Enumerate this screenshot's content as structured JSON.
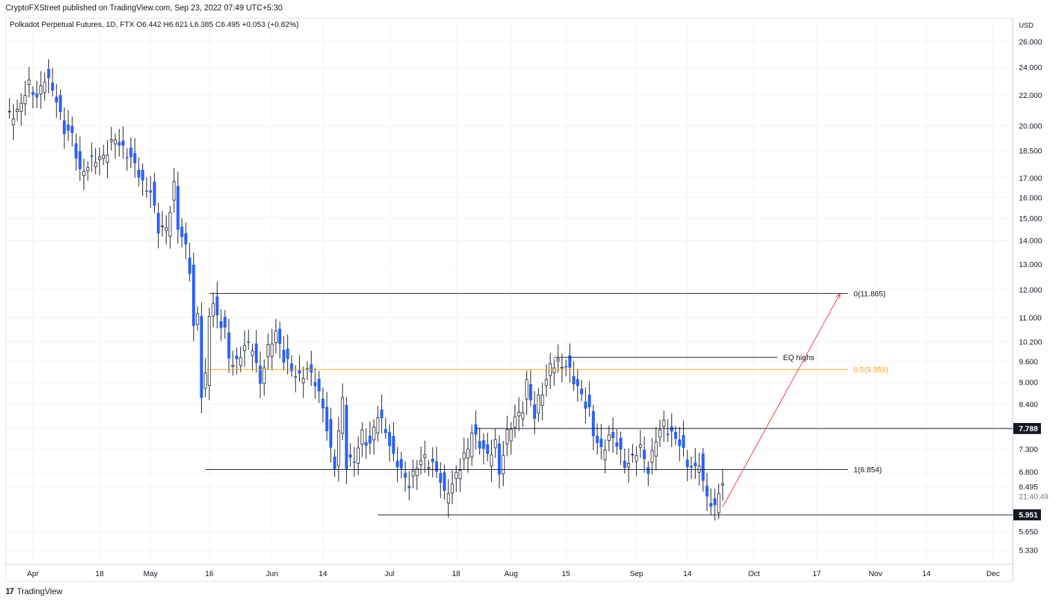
{
  "header": {
    "publisher_line": "CryptoFXStreet published on TradingView.com, Sep 23, 2022 07:49 UTC+5:30"
  },
  "symbol_line": "Polkadot Perpetual Futures, 1D, FTX  O6.442  H6.621  L6.385  C6.495  +0.053 (+0.82%)",
  "footer": {
    "logo_glyph": "17",
    "brand": "TradingView"
  },
  "colors": {
    "up": "#ffffff",
    "down": "#2962ff",
    "wick": "#131722",
    "fib_mid": "#f7a21b",
    "arrow": "#f23645",
    "label_bg": "#131722",
    "grid": "#f0f3fa"
  },
  "chart_data": {
    "type": "candlestick",
    "title": "Polkadot Perpetual Futures, 1D, FTX",
    "currency": "USD",
    "scale": "log",
    "ylim": [
      5.1,
      28.0
    ],
    "y_ticks": [
      "26.000",
      "24.000",
      "22.000",
      "20.000",
      "18.500",
      "17.000",
      "16.000",
      "15.000",
      "14.000",
      "13.000",
      "12.000",
      "11.000",
      "10.200",
      "9.600",
      "9.000",
      "8.400",
      "7.800",
      "7.300",
      "6.800",
      "6.495",
      "5.650",
      "5.330"
    ],
    "x_labels": [
      {
        "label": "Apr",
        "index": 7
      },
      {
        "label": "18",
        "index": 24
      },
      {
        "label": "May",
        "index": 37
      },
      {
        "label": "16",
        "index": 52
      },
      {
        "label": "Jun",
        "index": 68
      },
      {
        "label": "14",
        "index": 81
      },
      {
        "label": "Jul",
        "index": 98
      },
      {
        "label": "18",
        "index": 115
      },
      {
        "label": "Aug",
        "index": 129
      },
      {
        "label": "15",
        "index": 143
      },
      {
        "label": "Sep",
        "index": 161
      },
      {
        "label": "14",
        "index": 174
      },
      {
        "label": "Oct",
        "index": 191
      },
      {
        "label": "17",
        "index": 207
      },
      {
        "label": "Nov",
        "index": 222
      },
      {
        "label": "14",
        "index": 235
      },
      {
        "label": "Dec",
        "index": 252
      }
    ],
    "visible_index_range": [
      0,
      257
    ],
    "candles_anchors": [
      {
        "i": 0,
        "c": 20.5
      },
      {
        "i": 3,
        "c": 21.0
      },
      {
        "i": 6,
        "c": 22.6
      },
      {
        "i": 8,
        "c": 22.0
      },
      {
        "i": 10,
        "c": 23.2
      },
      {
        "i": 11,
        "c": 22.8
      },
      {
        "i": 13,
        "c": 21.8
      },
      {
        "i": 15,
        "c": 19.8
      },
      {
        "i": 17,
        "c": 19.3
      },
      {
        "i": 19,
        "c": 17.4
      },
      {
        "i": 22,
        "c": 17.8
      },
      {
        "i": 25,
        "c": 18.3
      },
      {
        "i": 28,
        "c": 19.1
      },
      {
        "i": 31,
        "c": 18.5
      },
      {
        "i": 33,
        "c": 17.6
      },
      {
        "i": 35,
        "c": 16.7
      },
      {
        "i": 37,
        "c": 16.4
      },
      {
        "i": 39,
        "c": 14.4
      },
      {
        "i": 41,
        "c": 14.6
      },
      {
        "i": 43,
        "c": 16.6
      },
      {
        "i": 44,
        "c": 14.5
      },
      {
        "i": 46,
        "c": 13.7
      },
      {
        "i": 47,
        "c": 12.9
      },
      {
        "i": 48,
        "c": 10.7
      },
      {
        "i": 49,
        "c": 11.1
      },
      {
        "i": 50,
        "c": 8.6
      },
      {
        "i": 51,
        "c": 9.1
      },
      {
        "i": 52,
        "c": 11.2
      },
      {
        "i": 53,
        "c": 11.6
      },
      {
        "i": 54,
        "c": 11.0
      },
      {
        "i": 56,
        "c": 10.5
      },
      {
        "i": 57,
        "c": 9.7
      },
      {
        "i": 59,
        "c": 9.6
      },
      {
        "i": 61,
        "c": 10.0
      },
      {
        "i": 63,
        "c": 10.1
      },
      {
        "i": 65,
        "c": 9.0
      },
      {
        "i": 67,
        "c": 9.9
      },
      {
        "i": 69,
        "c": 10.6
      },
      {
        "i": 71,
        "c": 9.7
      },
      {
        "i": 73,
        "c": 9.3
      },
      {
        "i": 75,
        "c": 9.2
      },
      {
        "i": 77,
        "c": 9.3
      },
      {
        "i": 79,
        "c": 9.0
      },
      {
        "i": 81,
        "c": 8.4
      },
      {
        "i": 83,
        "c": 7.2
      },
      {
        "i": 84,
        "c": 6.9
      },
      {
        "i": 86,
        "c": 8.6
      },
      {
        "i": 87,
        "c": 7.0
      },
      {
        "i": 89,
        "c": 7.0
      },
      {
        "i": 91,
        "c": 7.7
      },
      {
        "i": 93,
        "c": 7.4
      },
      {
        "i": 95,
        "c": 8.1
      },
      {
        "i": 97,
        "c": 7.8
      },
      {
        "i": 99,
        "c": 7.1
      },
      {
        "i": 101,
        "c": 6.8
      },
      {
        "i": 103,
        "c": 6.6
      },
      {
        "i": 105,
        "c": 6.9
      },
      {
        "i": 107,
        "c": 7.1
      },
      {
        "i": 109,
        "c": 7.0
      },
      {
        "i": 111,
        "c": 6.6
      },
      {
        "i": 112,
        "c": 6.3
      },
      {
        "i": 114,
        "c": 6.6
      },
      {
        "i": 116,
        "c": 6.9
      },
      {
        "i": 118,
        "c": 7.3
      },
      {
        "i": 119,
        "c": 7.8
      },
      {
        "i": 121,
        "c": 7.4
      },
      {
        "i": 123,
        "c": 7.1
      },
      {
        "i": 125,
        "c": 7.5
      },
      {
        "i": 126,
        "c": 6.8
      },
      {
        "i": 128,
        "c": 7.6
      },
      {
        "i": 130,
        "c": 8.1
      },
      {
        "i": 132,
        "c": 8.3
      },
      {
        "i": 133,
        "c": 8.9
      },
      {
        "i": 135,
        "c": 8.1
      },
      {
        "i": 136,
        "c": 8.6
      },
      {
        "i": 138,
        "c": 9.0
      },
      {
        "i": 139,
        "c": 9.4
      },
      {
        "i": 141,
        "c": 9.6
      },
      {
        "i": 143,
        "c": 9.5
      },
      {
        "i": 145,
        "c": 9.0
      },
      {
        "i": 147,
        "c": 8.7
      },
      {
        "i": 149,
        "c": 8.2
      },
      {
        "i": 150,
        "c": 7.6
      },
      {
        "i": 152,
        "c": 7.3
      },
      {
        "i": 154,
        "c": 7.6
      },
      {
        "i": 156,
        "c": 7.4
      },
      {
        "i": 158,
        "c": 7.0
      },
      {
        "i": 160,
        "c": 7.1
      },
      {
        "i": 162,
        "c": 7.3
      },
      {
        "i": 164,
        "c": 6.9
      },
      {
        "i": 166,
        "c": 7.5
      },
      {
        "i": 168,
        "c": 7.9
      },
      {
        "i": 170,
        "c": 7.7
      },
      {
        "i": 172,
        "c": 7.4
      },
      {
        "i": 174,
        "c": 7.0
      },
      {
        "i": 176,
        "c": 6.9
      },
      {
        "i": 177,
        "c": 7.0
      },
      {
        "i": 178,
        "c": 6.5
      },
      {
        "i": 179,
        "c": 6.3
      },
      {
        "i": 180,
        "c": 6.2
      },
      {
        "i": 181,
        "c": 6.1
      },
      {
        "i": 182,
        "c": 6.44
      },
      {
        "i": 183,
        "c": 6.495
      }
    ],
    "horizontal_lines": [
      {
        "label": "0(11.865)",
        "price": 11.865,
        "from_index": 52,
        "to_index": 215,
        "color": "#131722"
      },
      {
        "label": "EQ highs",
        "price": 9.72,
        "from_index": 140,
        "to_index": 197,
        "color": "#131722"
      },
      {
        "label": "0.5(9.359)",
        "price": 9.359,
        "from_index": 51,
        "to_index": 215,
        "color": "#f7a21b"
      },
      {
        "label": "",
        "price": 7.788,
        "from_index": 120,
        "to_index": 258,
        "color": "#131722"
      },
      {
        "label": "1(6.854)",
        "price": 6.854,
        "from_index": 51,
        "to_index": 215,
        "color": "#131722"
      },
      {
        "label": "",
        "price": 5.951,
        "from_index": 95,
        "to_index": 258,
        "color": "#131722"
      }
    ],
    "price_badges": [
      {
        "value": "7.788",
        "price": 7.788
      },
      {
        "value": "5.951",
        "price": 5.951
      }
    ],
    "last_price": {
      "value": "6.495",
      "countdown": "21:40:49"
    },
    "projection_arrow": {
      "from_index": 183,
      "from_price": 6.1,
      "to_index": 213,
      "to_price": 11.865
    }
  }
}
